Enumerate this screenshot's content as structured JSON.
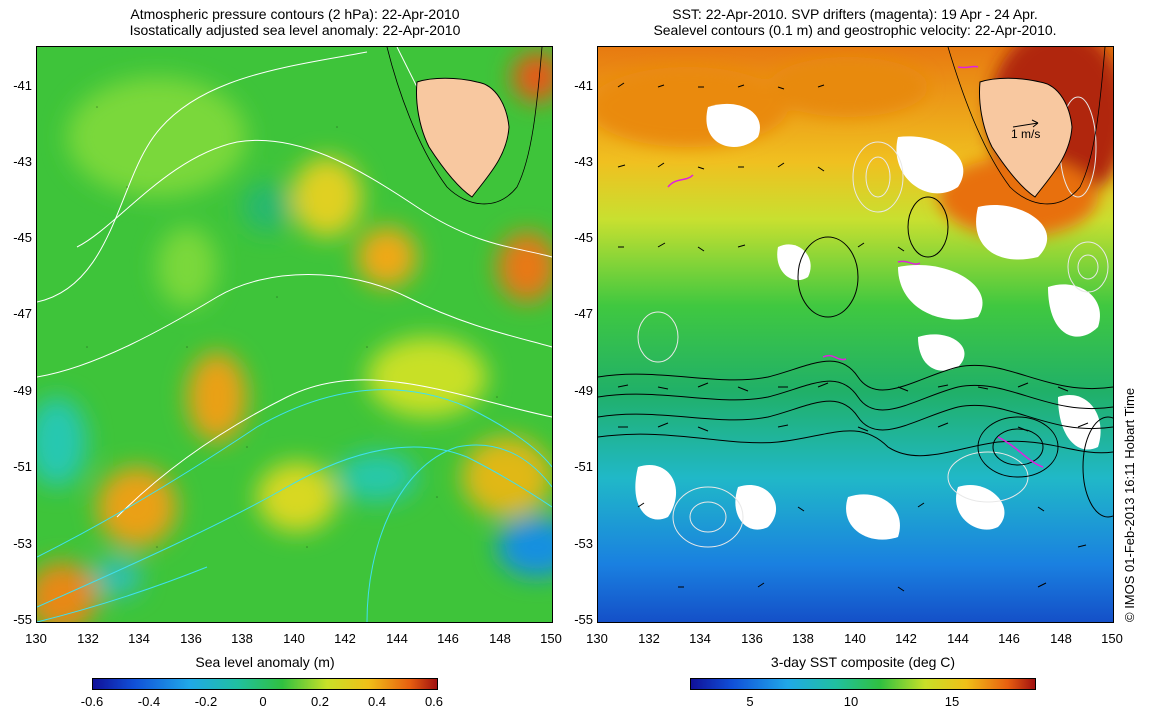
{
  "left_panel": {
    "title_line1": "Atmospheric pressure contours (2 hPa): 22-Apr-2010",
    "title_line2": "Isostatically adjusted sea level anomaly: 22-Apr-2010",
    "y_ticks": [
      "-41",
      "-43",
      "-45",
      "-47",
      "-49",
      "-51",
      "-53",
      "-55"
    ],
    "x_ticks": [
      "130",
      "132",
      "134",
      "136",
      "138",
      "140",
      "142",
      "144",
      "146",
      "148",
      "150"
    ],
    "colorbar": {
      "title": "Sea level anomaly (m)",
      "ticks": [
        "-0.6",
        "-0.4",
        "-0.2",
        "0",
        "0.2",
        "0.4",
        "0.6"
      ]
    }
  },
  "right_panel": {
    "title_line1": "SST: 22-Apr-2010. SVP drifters (magenta): 19 Apr - 24 Apr.",
    "title_line2": "Sealevel contours (0.1 m) and geostrophic velocity: 22-Apr-2010.",
    "y_ticks": [
      "-41",
      "-43",
      "-45",
      "-47",
      "-49",
      "-51",
      "-53",
      "-55"
    ],
    "x_ticks": [
      "130",
      "132",
      "134",
      "136",
      "138",
      "140",
      "142",
      "144",
      "146",
      "148",
      "150"
    ],
    "scale_arrow_label": "1 m/s",
    "colorbar": {
      "title": "3-day SST composite (deg C)",
      "ticks": [
        "5",
        "10",
        "15"
      ]
    }
  },
  "credit": "© IMOS 01-Feb-2013 16:11 Hobart Time",
  "colors": {
    "land": "#f8c8a0",
    "ocean_green": "#39c43c",
    "warm_orange": "#e8a010",
    "cold_blue": "#1a7fdc"
  }
}
